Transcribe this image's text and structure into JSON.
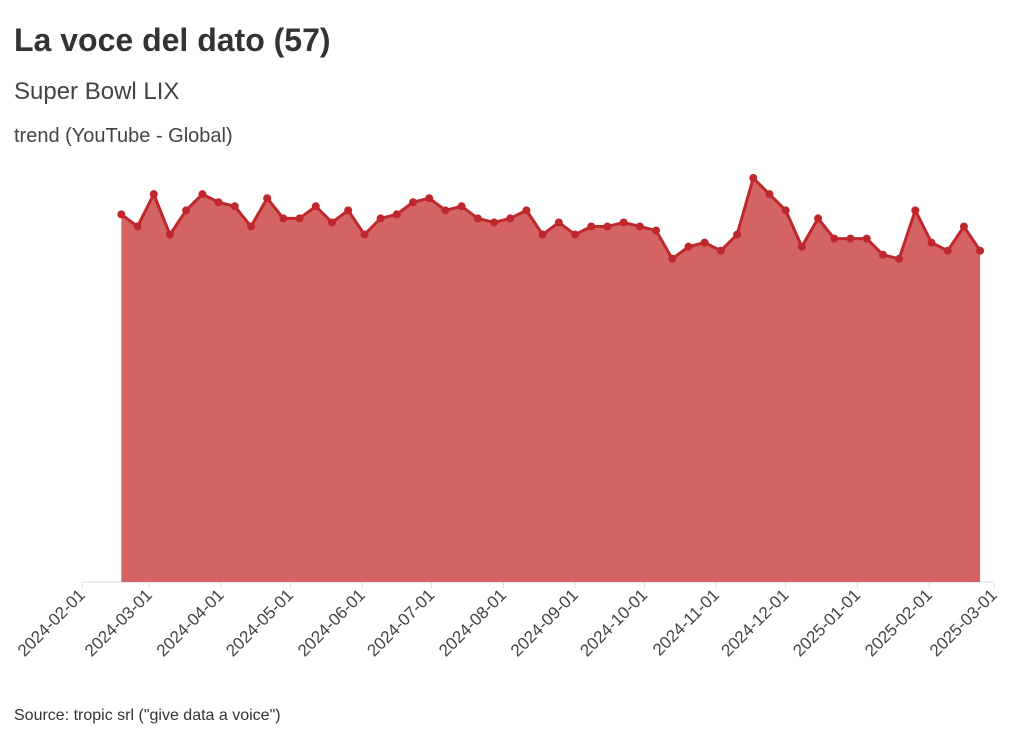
{
  "title": "La voce del dato (57)",
  "subtitle": "Super Bowl LIX",
  "series_label": "trend (YouTube - Global)",
  "source": "Source: tropic srl (\"give data a voice\")",
  "colors": {
    "line": "#c0272d",
    "area": "#d36463",
    "axis": "#dddddd",
    "text": "#333333"
  },
  "chart_data": {
    "type": "area",
    "title": "La voce del dato (57)",
    "subtitle": "Super Bowl LIX",
    "xlabel": "",
    "ylabel": "",
    "grid": false,
    "legend": "none",
    "xlim": [
      "2024-02-01",
      "2025-03-01"
    ],
    "ylim": [
      0,
      100
    ],
    "x_ticks": [
      "2024-02-01",
      "2024-03-01",
      "2024-04-01",
      "2024-05-01",
      "2024-06-01",
      "2024-07-01",
      "2024-08-01",
      "2024-09-01",
      "2024-10-01",
      "2024-11-01",
      "2024-12-01",
      "2025-01-01",
      "2025-02-01",
      "2025-03-01"
    ],
    "series": [
      {
        "name": "trend (YouTube - Global)",
        "x": [
          "2024-02-18",
          "2024-02-25",
          "2024-03-03",
          "2024-03-10",
          "2024-03-17",
          "2024-03-24",
          "2024-03-31",
          "2024-04-07",
          "2024-04-14",
          "2024-04-21",
          "2024-04-28",
          "2024-05-05",
          "2024-05-12",
          "2024-05-19",
          "2024-05-26",
          "2024-06-02",
          "2024-06-09",
          "2024-06-16",
          "2024-06-23",
          "2024-06-30",
          "2024-07-07",
          "2024-07-14",
          "2024-07-21",
          "2024-07-28",
          "2024-08-04",
          "2024-08-11",
          "2024-08-18",
          "2024-08-25",
          "2024-09-01",
          "2024-09-08",
          "2024-09-15",
          "2024-09-22",
          "2024-09-29",
          "2024-10-06",
          "2024-10-13",
          "2024-10-20",
          "2024-10-27",
          "2024-11-03",
          "2024-11-10",
          "2024-11-17",
          "2024-11-24",
          "2024-12-01",
          "2024-12-08",
          "2024-12-15",
          "2024-12-22",
          "2024-12-29",
          "2025-01-05",
          "2025-01-12",
          "2025-01-19",
          "2025-01-26",
          "2025-02-02",
          "2025-02-09",
          "2025-02-16",
          "2025-02-23"
        ],
        "values": [
          91,
          88,
          96,
          86,
          92,
          96,
          94,
          93,
          88,
          95,
          90,
          90,
          93,
          89,
          92,
          86,
          90,
          91,
          94,
          95,
          92,
          93,
          90,
          89,
          90,
          92,
          86,
          89,
          86,
          88,
          88,
          89,
          88,
          87,
          80,
          83,
          84,
          82,
          86,
          100,
          96,
          92,
          83,
          90,
          85,
          85,
          85,
          81,
          80,
          92,
          84,
          82,
          88,
          82
        ]
      }
    ]
  }
}
